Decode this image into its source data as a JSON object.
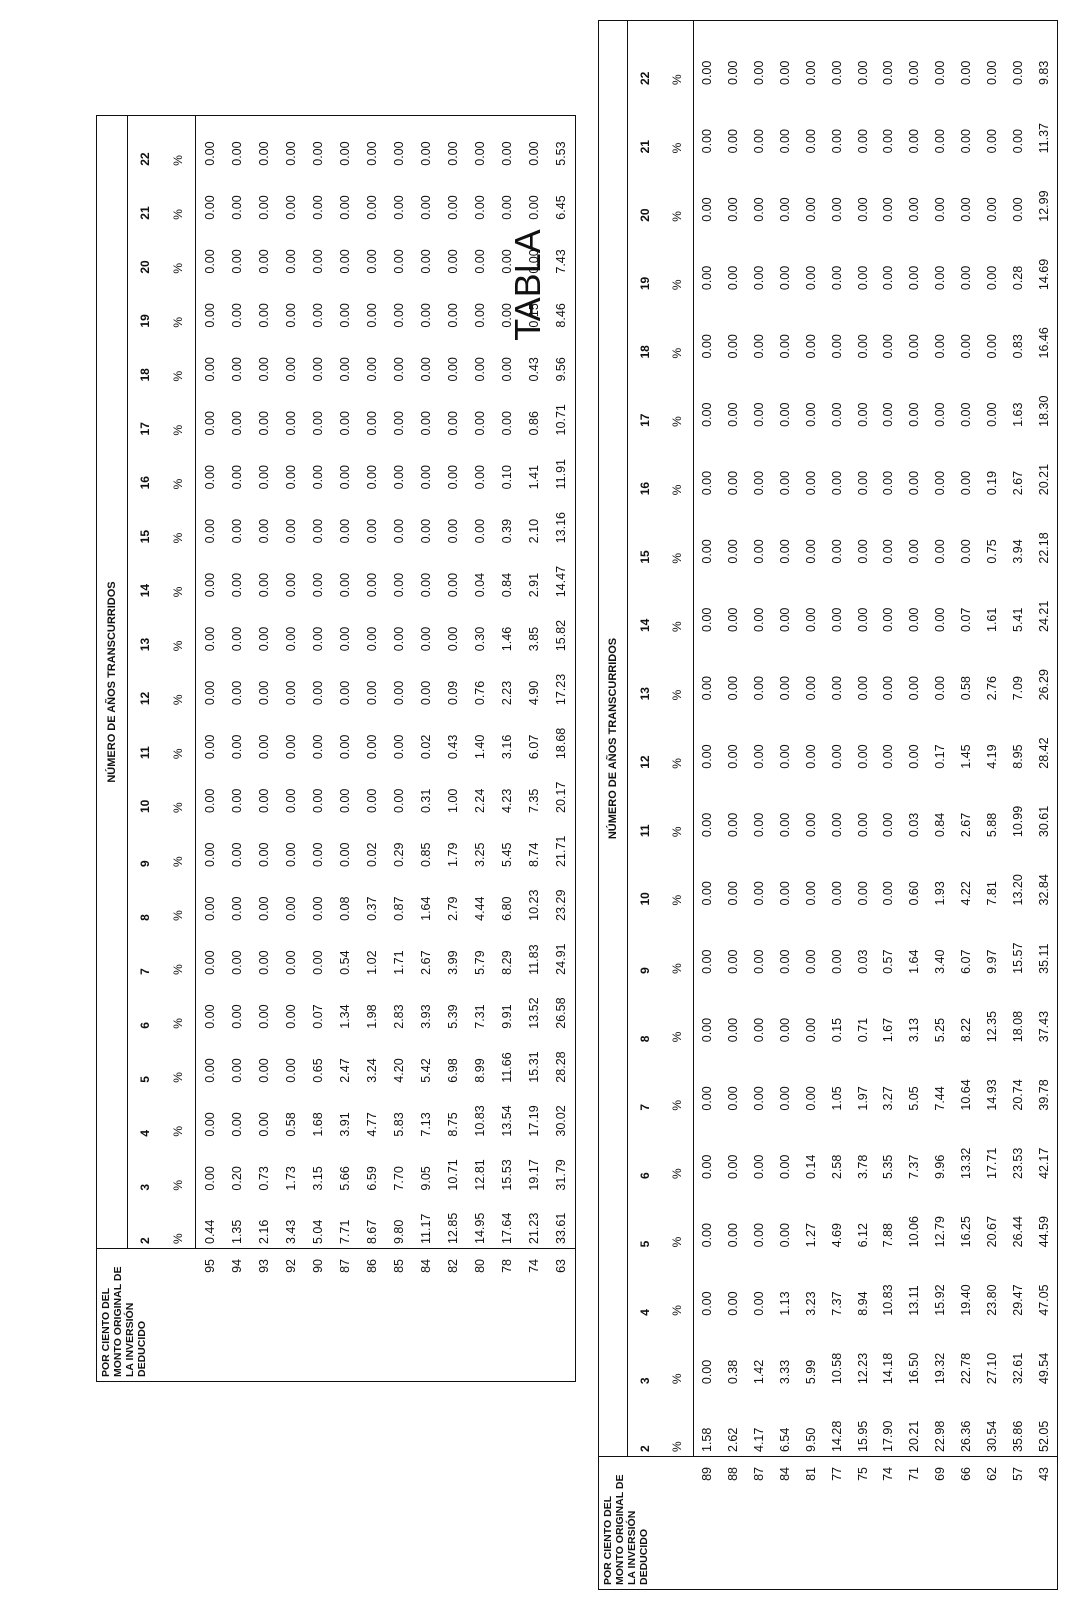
{
  "page_title": "TABLA",
  "tables": [
    {
      "first_col_header": "POR CIENTO DEL MONTO ORIGINAL DE LA INVERSIÓN DEDUCIDO",
      "group_header": "NÚMERO DE AÑOS TRANSCURRIDOS",
      "years": [
        "2",
        "3",
        "4",
        "5",
        "6",
        "7",
        "8",
        "9",
        "10",
        "11",
        "12",
        "13",
        "14",
        "15",
        "16",
        "17",
        "18",
        "19",
        "20",
        "21",
        "22"
      ],
      "unit": "%",
      "rows": [
        {
          "pct": "95",
          "values": [
            "0.44",
            "0.00",
            "0.00",
            "0.00",
            "0.00",
            "0.00",
            "0.00",
            "0.00",
            "0.00",
            "0.00",
            "0.00",
            "0.00",
            "0.00",
            "0.00",
            "0.00",
            "0.00",
            "0.00",
            "0.00",
            "0.00",
            "0.00",
            "0.00"
          ]
        },
        {
          "pct": "94",
          "values": [
            "1.35",
            "0.20",
            "0.00",
            "0.00",
            "0.00",
            "0.00",
            "0.00",
            "0.00",
            "0.00",
            "0.00",
            "0.00",
            "0.00",
            "0.00",
            "0.00",
            "0.00",
            "0.00",
            "0.00",
            "0.00",
            "0.00",
            "0.00",
            "0.00"
          ]
        },
        {
          "pct": "93",
          "values": [
            "2.16",
            "0.73",
            "0.00",
            "0.00",
            "0.00",
            "0.00",
            "0.00",
            "0.00",
            "0.00",
            "0.00",
            "0.00",
            "0.00",
            "0.00",
            "0.00",
            "0.00",
            "0.00",
            "0.00",
            "0.00",
            "0.00",
            "0.00",
            "0.00"
          ]
        },
        {
          "pct": "92",
          "values": [
            "3.43",
            "1.73",
            "0.58",
            "0.00",
            "0.00",
            "0.00",
            "0.00",
            "0.00",
            "0.00",
            "0.00",
            "0.00",
            "0.00",
            "0.00",
            "0.00",
            "0.00",
            "0.00",
            "0.00",
            "0.00",
            "0.00",
            "0.00",
            "0.00"
          ]
        },
        {
          "pct": "90",
          "values": [
            "5.04",
            "3.15",
            "1.68",
            "0.65",
            "0.07",
            "0.00",
            "0.00",
            "0.00",
            "0.00",
            "0.00",
            "0.00",
            "0.00",
            "0.00",
            "0.00",
            "0.00",
            "0.00",
            "0.00",
            "0.00",
            "0.00",
            "0.00",
            "0.00"
          ]
        },
        {
          "pct": "87",
          "values": [
            "7.71",
            "5.66",
            "3.91",
            "2.47",
            "1.34",
            "0.54",
            "0.08",
            "0.00",
            "0.00",
            "0.00",
            "0.00",
            "0.00",
            "0.00",
            "0.00",
            "0.00",
            "0.00",
            "0.00",
            "0.00",
            "0.00",
            "0.00",
            "0.00"
          ]
        },
        {
          "pct": "86",
          "values": [
            "8.67",
            "6.59",
            "4.77",
            "3.24",
            "1.98",
            "1.02",
            "0.37",
            "0.02",
            "0.00",
            "0.00",
            "0.00",
            "0.00",
            "0.00",
            "0.00",
            "0.00",
            "0.00",
            "0.00",
            "0.00",
            "0.00",
            "0.00",
            "0.00"
          ]
        },
        {
          "pct": "85",
          "values": [
            "9.80",
            "7.70",
            "5.83",
            "4.20",
            "2.83",
            "1.71",
            "0.87",
            "0.29",
            "0.00",
            "0.00",
            "0.00",
            "0.00",
            "0.00",
            "0.00",
            "0.00",
            "0.00",
            "0.00",
            "0.00",
            "0.00",
            "0.00",
            "0.00"
          ]
        },
        {
          "pct": "84",
          "values": [
            "11.17",
            "9.05",
            "7.13",
            "5.42",
            "3.93",
            "2.67",
            "1.64",
            "0.85",
            "0.31",
            "0.02",
            "0.00",
            "0.00",
            "0.00",
            "0.00",
            "0.00",
            "0.00",
            "0.00",
            "0.00",
            "0.00",
            "0.00",
            "0.00"
          ]
        },
        {
          "pct": "82",
          "values": [
            "12.85",
            "10.71",
            "8.75",
            "6.98",
            "5.39",
            "3.99",
            "2.79",
            "1.79",
            "1.00",
            "0.43",
            "0.09",
            "0.00",
            "0.00",
            "0.00",
            "0.00",
            "0.00",
            "0.00",
            "0.00",
            "0.00",
            "0.00",
            "0.00"
          ]
        },
        {
          "pct": "80",
          "values": [
            "14.95",
            "12.81",
            "10.83",
            "8.99",
            "7.31",
            "5.79",
            "4.44",
            "3.25",
            "2.24",
            "1.40",
            "0.76",
            "0.30",
            "0.04",
            "0.00",
            "0.00",
            "0.00",
            "0.00",
            "0.00",
            "0.00",
            "0.00",
            "0.00"
          ]
        },
        {
          "pct": "78",
          "values": [
            "17.64",
            "15.53",
            "13.54",
            "11.66",
            "9.91",
            "8.29",
            "6.80",
            "5.45",
            "4.23",
            "3.16",
            "2.23",
            "1.46",
            "0.84",
            "0.39",
            "0.10",
            "0.00",
            "0.00",
            "0.00",
            "0.00",
            "0.00",
            "0.00"
          ]
        },
        {
          "pct": "74",
          "values": [
            "21.23",
            "19.17",
            "17.19",
            "15.31",
            "13.52",
            "11.83",
            "10.23",
            "8.74",
            "7.35",
            "6.07",
            "4.90",
            "3.85",
            "2.91",
            "2.10",
            "1.41",
            "0.86",
            "0.43",
            "0.15",
            "0.00",
            "0.00",
            "0.00"
          ]
        },
        {
          "pct": "63",
          "values": [
            "33.61",
            "31.79",
            "30.02",
            "28.28",
            "26.58",
            "24.91",
            "23.29",
            "21.71",
            "20.17",
            "18.68",
            "17.23",
            "15.82",
            "14.47",
            "13.16",
            "11.91",
            "10.71",
            "9.56",
            "8.46",
            "7.43",
            "6.45",
            "5.53"
          ]
        }
      ]
    },
    {
      "first_col_header": "POR CIENTO DEL MONTO ORIGINAL DE LA INVERSIÓN DEDUCIDO",
      "group_header": "NÚMERO DE AÑOS TRANSCURRIDOS",
      "years": [
        "2",
        "3",
        "4",
        "5",
        "6",
        "7",
        "8",
        "9",
        "10",
        "11",
        "12",
        "13",
        "14",
        "15",
        "16",
        "17",
        "18",
        "19",
        "20",
        "21",
        "22"
      ],
      "unit": "%",
      "rows": [
        {
          "pct": "89",
          "values": [
            "1.58",
            "0.00",
            "0.00",
            "0.00",
            "0.00",
            "0.00",
            "0.00",
            "0.00",
            "0.00",
            "0.00",
            "0.00",
            "0.00",
            "0.00",
            "0.00",
            "0.00",
            "0.00",
            "0.00",
            "0.00",
            "0.00",
            "0.00",
            "0.00"
          ]
        },
        {
          "pct": "88",
          "values": [
            "2.62",
            "0.38",
            "0.00",
            "0.00",
            "0.00",
            "0.00",
            "0.00",
            "0.00",
            "0.00",
            "0.00",
            "0.00",
            "0.00",
            "0.00",
            "0.00",
            "0.00",
            "0.00",
            "0.00",
            "0.00",
            "0.00",
            "0.00",
            "0.00"
          ]
        },
        {
          "pct": "87",
          "values": [
            "4.17",
            "1.42",
            "0.00",
            "0.00",
            "0.00",
            "0.00",
            "0.00",
            "0.00",
            "0.00",
            "0.00",
            "0.00",
            "0.00",
            "0.00",
            "0.00",
            "0.00",
            "0.00",
            "0.00",
            "0.00",
            "0.00",
            "0.00",
            "0.00"
          ]
        },
        {
          "pct": "84",
          "values": [
            "6.54",
            "3.33",
            "1.13",
            "0.00",
            "0.00",
            "0.00",
            "0.00",
            "0.00",
            "0.00",
            "0.00",
            "0.00",
            "0.00",
            "0.00",
            "0.00",
            "0.00",
            "0.00",
            "0.00",
            "0.00",
            "0.00",
            "0.00",
            "0.00"
          ]
        },
        {
          "pct": "81",
          "values": [
            "9.50",
            "5.99",
            "3.23",
            "1.27",
            "0.14",
            "0.00",
            "0.00",
            "0.00",
            "0.00",
            "0.00",
            "0.00",
            "0.00",
            "0.00",
            "0.00",
            "0.00",
            "0.00",
            "0.00",
            "0.00",
            "0.00",
            "0.00",
            "0.00"
          ]
        },
        {
          "pct": "77",
          "values": [
            "14.28",
            "10.58",
            "7.37",
            "4.69",
            "2.58",
            "1.05",
            "0.15",
            "0.00",
            "0.00",
            "0.00",
            "0.00",
            "0.00",
            "0.00",
            "0.00",
            "0.00",
            "0.00",
            "0.00",
            "0.00",
            "0.00",
            "0.00",
            "0.00"
          ]
        },
        {
          "pct": "75",
          "values": [
            "15.95",
            "12.23",
            "8.94",
            "6.12",
            "3.78",
            "1.97",
            "0.71",
            "0.03",
            "0.00",
            "0.00",
            "0.00",
            "0.00",
            "0.00",
            "0.00",
            "0.00",
            "0.00",
            "0.00",
            "0.00",
            "0.00",
            "0.00",
            "0.00"
          ]
        },
        {
          "pct": "74",
          "values": [
            "17.90",
            "14.18",
            "10.83",
            "7.88",
            "5.35",
            "3.27",
            "1.67",
            "0.57",
            "0.00",
            "0.00",
            "0.00",
            "0.00",
            "0.00",
            "0.00",
            "0.00",
            "0.00",
            "0.00",
            "0.00",
            "0.00",
            "0.00",
            "0.00"
          ]
        },
        {
          "pct": "71",
          "values": [
            "20.21",
            "16.50",
            "13.11",
            "10.06",
            "7.37",
            "5.05",
            "3.13",
            "1.64",
            "0.60",
            "0.03",
            "0.00",
            "0.00",
            "0.00",
            "0.00",
            "0.00",
            "0.00",
            "0.00",
            "0.00",
            "0.00",
            "0.00",
            "0.00"
          ]
        },
        {
          "pct": "69",
          "values": [
            "22.98",
            "19.32",
            "15.92",
            "12.79",
            "9.96",
            "7.44",
            "5.25",
            "3.40",
            "1.93",
            "0.84",
            "0.17",
            "0.00",
            "0.00",
            "0.00",
            "0.00",
            "0.00",
            "0.00",
            "0.00",
            "0.00",
            "0.00",
            "0.00"
          ]
        },
        {
          "pct": "66",
          "values": [
            "26.36",
            "22.78",
            "19.40",
            "16.25",
            "13.32",
            "10.64",
            "8.22",
            "6.07",
            "4.22",
            "2.67",
            "1.45",
            "0.58",
            "0.07",
            "0.00",
            "0.00",
            "0.00",
            "0.00",
            "0.00",
            "0.00",
            "0.00",
            "0.00"
          ]
        },
        {
          "pct": "62",
          "values": [
            "30.54",
            "27.10",
            "23.80",
            "20.67",
            "17.71",
            "14.93",
            "12.35",
            "9.97",
            "7.81",
            "5.88",
            "4.19",
            "2.76",
            "1.61",
            "0.75",
            "0.19",
            "0.00",
            "0.00",
            "0.00",
            "0.00",
            "0.00",
            "0.00"
          ]
        },
        {
          "pct": "57",
          "values": [
            "35.86",
            "32.61",
            "29.47",
            "26.44",
            "23.53",
            "20.74",
            "18.08",
            "15.57",
            "13.20",
            "10.99",
            "8.95",
            "7.09",
            "5.41",
            "3.94",
            "2.67",
            "1.63",
            "0.83",
            "0.28",
            "0.00",
            "0.00",
            "0.00"
          ]
        },
        {
          "pct": "43",
          "values": [
            "52.05",
            "49.54",
            "47.05",
            "44.59",
            "42.17",
            "39.78",
            "37.43",
            "35.11",
            "32.84",
            "30.61",
            "28.42",
            "26.29",
            "24.21",
            "22.18",
            "20.21",
            "18.30",
            "16.46",
            "14.69",
            "12.99",
            "11.37",
            "9.83"
          ]
        }
      ]
    }
  ]
}
